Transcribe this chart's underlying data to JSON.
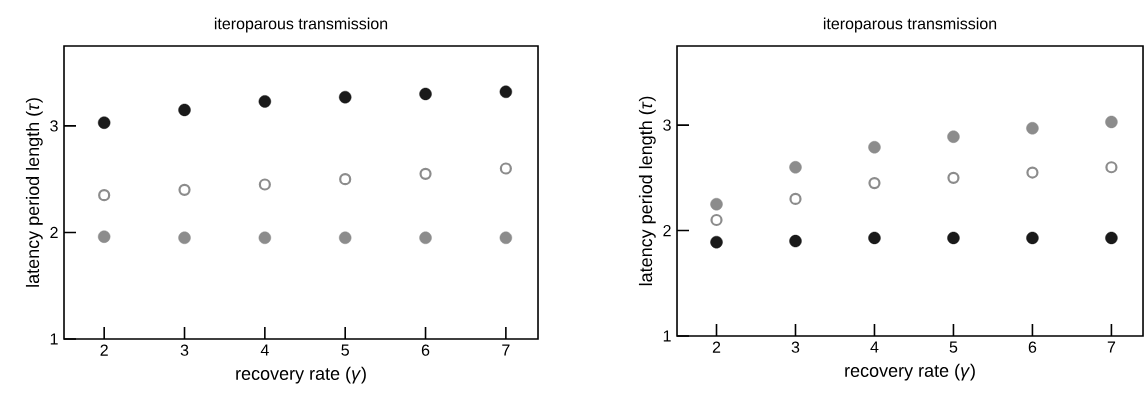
{
  "chart_data": [
    {
      "type": "scatter",
      "title": "iteroparous transmission",
      "xlabel": "recovery rate (*γ*)",
      "ylabel": "latency period length (*τ*)",
      "x": [
        2,
        3,
        4,
        5,
        6,
        7
      ],
      "xlim": [
        1.5,
        7.4
      ],
      "ylim": [
        1,
        3.75
      ],
      "xticks": [
        2,
        3,
        4,
        5,
        6,
        7
      ],
      "yticks": [
        1,
        2,
        3
      ],
      "marker": "circle",
      "series": [
        {
          "color": "#1a1a1a",
          "values": [
            3.03,
            3.15,
            3.23,
            3.27,
            3.3,
            3.32
          ]
        },
        {
          "color": "#8c8c8c",
          "marker": "circle-open",
          "values": [
            2.35,
            2.4,
            2.45,
            2.5,
            2.55,
            2.6
          ]
        },
        {
          "color": "#8c8c8c",
          "values": [
            1.96,
            1.95,
            1.95,
            1.95,
            1.95,
            1.95
          ]
        }
      ]
    },
    {
      "type": "scatter",
      "title": "iteroparous transmission",
      "xlabel": "recovery rate (*γ*)",
      "ylabel": "latency period length (*τ*)",
      "x": [
        2,
        3,
        4,
        5,
        6,
        7
      ],
      "xlim": [
        1.5,
        7.4
      ],
      "ylim": [
        1,
        3.75
      ],
      "xticks": [
        2,
        3,
        4,
        5,
        6,
        7
      ],
      "yticks": [
        1,
        2,
        3
      ],
      "marker": "circle",
      "series": [
        {
          "color": "#8c8c8c",
          "values": [
            2.25,
            2.6,
            2.79,
            2.89,
            2.97,
            3.03
          ]
        },
        {
          "color": "#8c8c8c",
          "marker": "circle-open",
          "values": [
            2.1,
            2.3,
            2.45,
            2.5,
            2.55,
            2.6
          ]
        },
        {
          "color": "#1a1a1a",
          "values": [
            1.89,
            1.9,
            1.93,
            1.93,
            1.93,
            1.93
          ]
        }
      ]
    }
  ]
}
